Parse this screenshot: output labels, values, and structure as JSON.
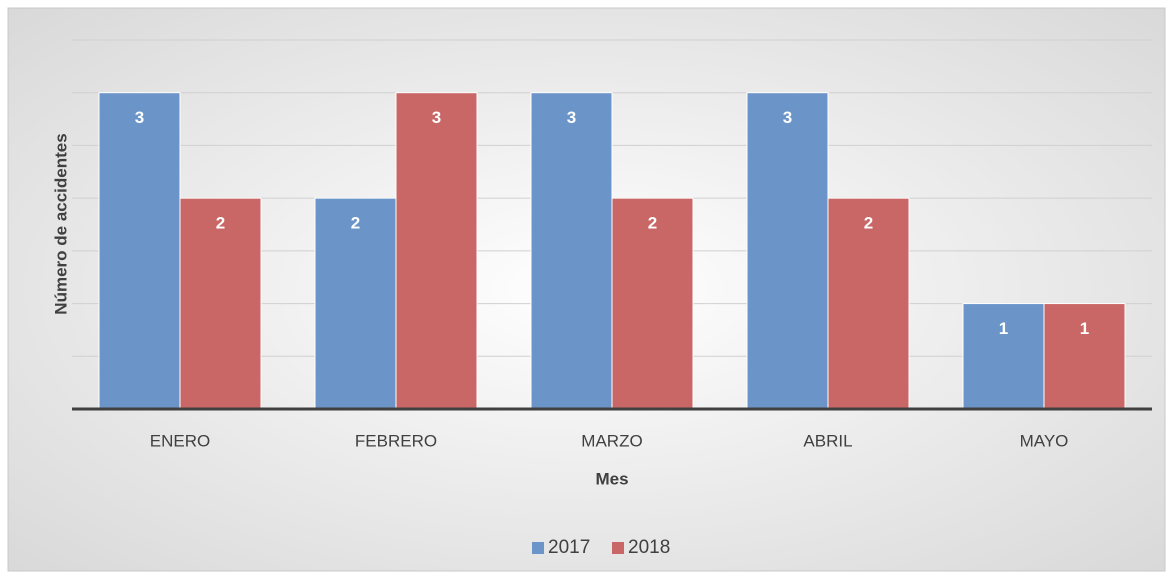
{
  "chart_data": {
    "type": "bar",
    "x_label": "Mes",
    "y_label": "Número de accidentes",
    "categories": [
      "ENERO",
      "FEBRERO",
      "MARZO",
      "ABRIL",
      "MAYO"
    ],
    "series": [
      {
        "name": "2017",
        "color": "#6b94c9",
        "values": [
          3,
          2,
          3,
          3,
          1
        ]
      },
      {
        "name": "2018",
        "color": "#c96666",
        "values": [
          2,
          3,
          2,
          2,
          1
        ]
      }
    ],
    "ylim": [
      0,
      3.5
    ],
    "yticks": [
      0,
      0.5,
      1,
      1.5,
      2,
      2.5,
      3,
      3.5
    ],
    "grid": true,
    "legend": "bottom"
  }
}
